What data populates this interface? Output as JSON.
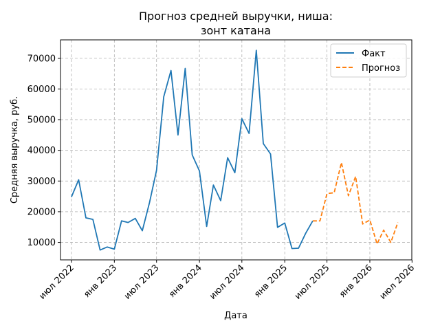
{
  "chart_data": {
    "type": "line",
    "title": [
      "Прогноз средней выручки, ниша:",
      "зонт катана"
    ],
    "xlabel": "Дата",
    "ylabel": "Средняя выручка, руб.",
    "xlim": [
      "2022-05-15",
      "2026-06-30"
    ],
    "ylim": [
      4300,
      76000
    ],
    "grid": true,
    "legend": "top-right",
    "x_ticks": [
      {
        "date": "2022-07-01",
        "label": "июл 2022"
      },
      {
        "date": "2023-01-01",
        "label": "янв 2023"
      },
      {
        "date": "2023-07-01",
        "label": "июл 2023"
      },
      {
        "date": "2024-01-01",
        "label": "янв 2024"
      },
      {
        "date": "2024-07-01",
        "label": "июл 2024"
      },
      {
        "date": "2025-01-01",
        "label": "янв 2025"
      },
      {
        "date": "2025-07-01",
        "label": "июл 2025"
      },
      {
        "date": "2026-01-01",
        "label": "янв 2026"
      },
      {
        "date": "2026-07-01",
        "label": "июл 2026"
      }
    ],
    "y_ticks": [
      {
        "value": 10000,
        "label": "10000"
      },
      {
        "value": 20000,
        "label": "20000"
      },
      {
        "value": 30000,
        "label": "30000"
      },
      {
        "value": 40000,
        "label": "40000"
      },
      {
        "value": 50000,
        "label": "50000"
      },
      {
        "value": 60000,
        "label": "60000"
      },
      {
        "value": 70000,
        "label": "70000"
      }
    ],
    "series": [
      {
        "name": "Факт",
        "color": "#1f77b4",
        "dash": "solid",
        "points": [
          [
            "2022-07-01",
            24800
          ],
          [
            "2022-08-01",
            30400
          ],
          [
            "2022-09-01",
            18000
          ],
          [
            "2022-10-01",
            17500
          ],
          [
            "2022-11-01",
            7500
          ],
          [
            "2022-12-01",
            8500
          ],
          [
            "2023-01-01",
            7800
          ],
          [
            "2023-02-01",
            17000
          ],
          [
            "2023-03-01",
            16500
          ],
          [
            "2023-04-01",
            17800
          ],
          [
            "2023-05-01",
            13800
          ],
          [
            "2023-06-01",
            23000
          ],
          [
            "2023-07-01",
            33500
          ],
          [
            "2023-08-01",
            57500
          ],
          [
            "2023-09-01",
            66000
          ],
          [
            "2023-10-01",
            45000
          ],
          [
            "2023-11-01",
            66700
          ],
          [
            "2023-12-01",
            38500
          ],
          [
            "2024-01-01",
            33300
          ],
          [
            "2024-02-01",
            15200
          ],
          [
            "2024-03-01",
            28700
          ],
          [
            "2024-04-01",
            23600
          ],
          [
            "2024-05-01",
            37600
          ],
          [
            "2024-06-01",
            32700
          ],
          [
            "2024-07-01",
            50300
          ],
          [
            "2024-08-01",
            45500
          ],
          [
            "2024-09-01",
            72600
          ],
          [
            "2024-10-01",
            42200
          ],
          [
            "2024-11-01",
            38800
          ],
          [
            "2024-12-01",
            14900
          ],
          [
            "2025-01-01",
            16300
          ],
          [
            "2025-02-01",
            8000
          ],
          [
            "2025-03-01",
            8100
          ],
          [
            "2025-04-01",
            13000
          ],
          [
            "2025-05-01",
            17000
          ]
        ]
      },
      {
        "name": "Прогноз",
        "color": "#ff7f0e",
        "dash": "dashed",
        "points": [
          [
            "2025-05-01",
            17000
          ],
          [
            "2025-06-01",
            17000
          ],
          [
            "2025-07-01",
            25900
          ],
          [
            "2025-08-01",
            26200
          ],
          [
            "2025-09-01",
            36000
          ],
          [
            "2025-10-01",
            25200
          ],
          [
            "2025-11-01",
            31500
          ],
          [
            "2025-12-01",
            16000
          ],
          [
            "2026-01-01",
            17300
          ],
          [
            "2026-02-01",
            9500
          ],
          [
            "2026-03-01",
            14000
          ],
          [
            "2026-04-01",
            10000
          ],
          [
            "2026-05-01",
            16500
          ]
        ]
      }
    ]
  }
}
